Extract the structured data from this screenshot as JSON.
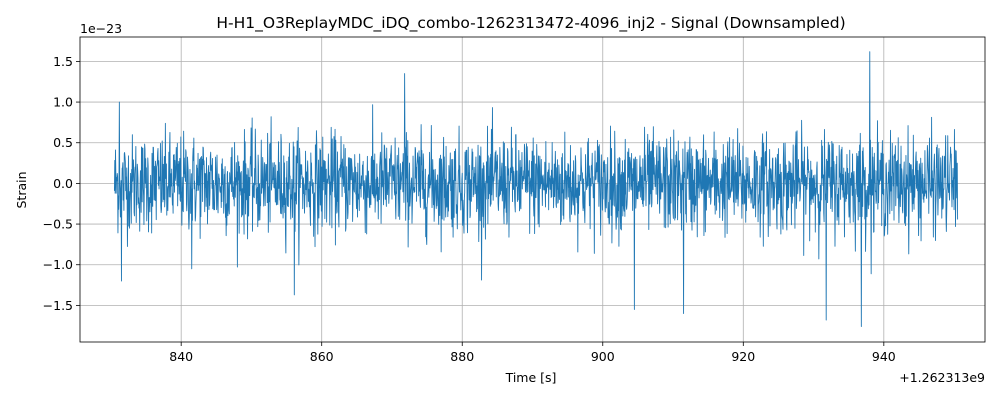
{
  "chart_data": {
    "type": "line",
    "title": "H-H1_O3ReplayMDC_iDQ_combo-1262313472-4096_inj2 - Signal (Downsampled)",
    "xlabel": "Time [s]",
    "ylabel": "Strain",
    "x_offset_label": "+1.262313e9",
    "y_scale_label": "1e−23",
    "xlim": [
      825.6,
      954.4
    ],
    "ylim": [
      -1.95,
      1.8
    ],
    "x_ticks": [
      840,
      860,
      880,
      900,
      920,
      940
    ],
    "x_tick_labels": [
      "840",
      "860",
      "880",
      "900",
      "920",
      "940"
    ],
    "y_ticks": [
      -1.5,
      -1.0,
      -0.5,
      0.0,
      0.5,
      1.0,
      1.5
    ],
    "y_tick_labels": [
      "−1.5",
      "−1.0",
      "−0.5",
      "0.0",
      "0.5",
      "1.0",
      "1.5"
    ],
    "grid": true,
    "series": [
      {
        "color": "#1f77b4",
        "x_range": [
          830.5,
          950.5
        ],
        "y_envelope_typical": [
          -0.65,
          0.65
        ],
        "y_peaks": [
          {
            "x": 831.2,
            "y": 1.0
          },
          {
            "x": 831.5,
            "y": -1.2
          },
          {
            "x": 841.5,
            "y": -1.05
          },
          {
            "x": 856.1,
            "y": -1.37
          },
          {
            "x": 871.8,
            "y": 1.35
          },
          {
            "x": 904.5,
            "y": -1.55
          },
          {
            "x": 911.5,
            "y": -1.6
          },
          {
            "x": 931.8,
            "y": -1.68
          },
          {
            "x": 936.8,
            "y": -1.76
          },
          {
            "x": 938.0,
            "y": 1.62
          }
        ]
      }
    ]
  }
}
